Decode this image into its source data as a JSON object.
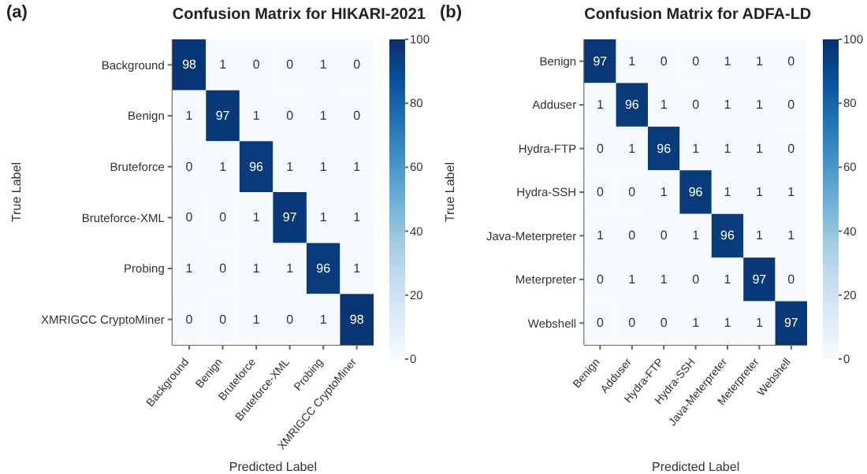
{
  "chart_data": [
    {
      "type": "heatmap",
      "title": "Confusion Matrix for HIKARI-2021",
      "annotations": [
        "(a)"
      ],
      "xlabel": "Predicted Label",
      "ylabel": "True Label",
      "categories": [
        "Background",
        "Benign",
        "Bruteforce",
        "Bruteforce-XML",
        "Probing",
        "XMRIGCC CryptoMiner"
      ],
      "y_categories": [
        "Background",
        "Benign",
        "Bruteforce",
        "Bruteforce-XML",
        "Probing",
        "XMRIGCC CryptoMiner"
      ],
      "cells": [
        [
          98,
          1,
          0,
          0,
          1,
          0
        ],
        [
          1,
          97,
          1,
          0,
          1,
          0
        ],
        [
          0,
          1,
          96,
          1,
          1,
          1
        ],
        [
          0,
          0,
          1,
          97,
          1,
          1
        ],
        [
          1,
          0,
          1,
          1,
          96,
          1
        ],
        [
          0,
          0,
          1,
          0,
          1,
          98
        ]
      ],
      "data_labels": true,
      "clim": [
        0,
        100
      ],
      "cticks": [
        0,
        20,
        40,
        60,
        80,
        100
      ]
    },
    {
      "type": "heatmap",
      "title": "Confusion Matrix for ADFA-LD",
      "annotations": [
        "(b)"
      ],
      "xlabel": "Predicted Label",
      "ylabel": "True Label",
      "categories": [
        "Benign",
        "Adduser",
        "Hydra-FTP",
        "Hydra-SSH",
        "Java-Meterpreter",
        "Meterpreter",
        "Webshell"
      ],
      "y_categories": [
        "Benign",
        "Adduser",
        "Hydra-FTP",
        "Hydra-SSH",
        "Java-Meterpreter",
        "Meterpreter",
        "Webshell"
      ],
      "cells": [
        [
          97,
          1,
          0,
          0,
          1,
          1,
          0
        ],
        [
          1,
          96,
          1,
          0,
          1,
          1,
          0
        ],
        [
          0,
          1,
          96,
          1,
          1,
          1,
          0
        ],
        [
          0,
          0,
          1,
          96,
          1,
          1,
          1
        ],
        [
          1,
          0,
          0,
          1,
          96,
          1,
          1
        ],
        [
          0,
          1,
          1,
          0,
          1,
          97,
          0
        ],
        [
          0,
          0,
          0,
          1,
          1,
          1,
          97
        ]
      ],
      "data_labels": true,
      "clim": [
        0,
        100
      ],
      "cticks": [
        0,
        20,
        40,
        60,
        80,
        100
      ]
    }
  ]
}
